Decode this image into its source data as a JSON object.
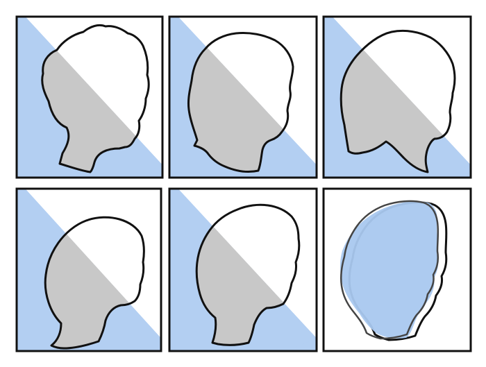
{
  "colors": {
    "background_band": "#b3cff2",
    "shaded_half": "#c8c8c8",
    "outline": "#111111",
    "overlay_fill": "#a9c9f0",
    "overlay_line": "#444444"
  },
  "panels": [
    {
      "id": "panel-1",
      "kind": "profile-diagonal",
      "hair": "curly-short"
    },
    {
      "id": "panel-2",
      "kind": "profile-diagonal",
      "hair": "medium-flip"
    },
    {
      "id": "panel-3",
      "kind": "profile-diagonal",
      "hair": "bob-pointed"
    },
    {
      "id": "panel-4",
      "kind": "profile-diagonal",
      "hair": "short-crop"
    },
    {
      "id": "panel-5",
      "kind": "profile-diagonal",
      "hair": "wavy-short"
    },
    {
      "id": "panel-6",
      "kind": "profile-overlay",
      "hair": "combined"
    }
  ]
}
